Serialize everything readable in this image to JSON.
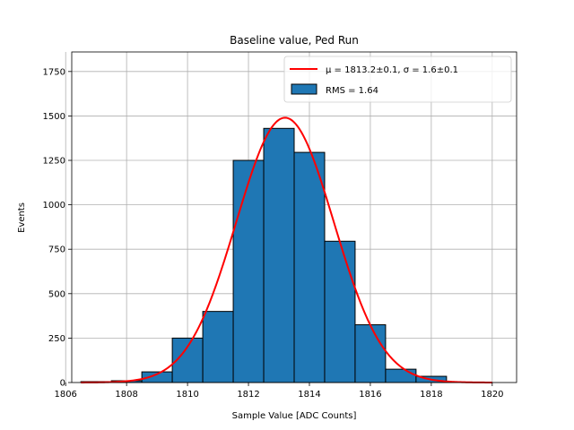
{
  "chart_data": {
    "type": "bar",
    "title": "Baseline value, Ped Run",
    "xlabel": "Sample Value [ADC Counts]",
    "ylabel": "Events",
    "xlim": [
      1806.2,
      1820.8
    ],
    "ylim": [
      0,
      1860
    ],
    "x_ticks": [
      1806,
      1808,
      1810,
      1812,
      1814,
      1816,
      1818,
      1820
    ],
    "y_ticks": [
      0,
      250,
      500,
      750,
      1000,
      1250,
      1500,
      1750
    ],
    "grid": true,
    "legend_position": "top-right",
    "bin_width": 1,
    "bins": [
      {
        "x": 1807,
        "value": 5
      },
      {
        "x": 1808,
        "value": 10
      },
      {
        "x": 1809,
        "value": 60
      },
      {
        "x": 1810,
        "value": 250
      },
      {
        "x": 1811,
        "value": 400
      },
      {
        "x": 1812,
        "value": 1250
      },
      {
        "x": 1813,
        "value": 1430
      },
      {
        "x": 1814,
        "value": 1295
      },
      {
        "x": 1815,
        "value": 795
      },
      {
        "x": 1816,
        "value": 325
      },
      {
        "x": 1817,
        "value": 75
      },
      {
        "x": 1818,
        "value": 35
      },
      {
        "x": 1819,
        "value": 2
      }
    ],
    "series": [
      {
        "name": "RMS = 1.64",
        "kind": "histogram",
        "color": "#1f77b4",
        "edge_color": "#000000"
      },
      {
        "name": "μ = 1813.2±0.1, σ = 1.6±0.1",
        "kind": "gaussian-fit",
        "color": "#ff0000",
        "mu": 1813.2,
        "sigma": 1.6,
        "amplitude": 1490,
        "x_range": [
          1806.5,
          1820
        ]
      }
    ]
  }
}
